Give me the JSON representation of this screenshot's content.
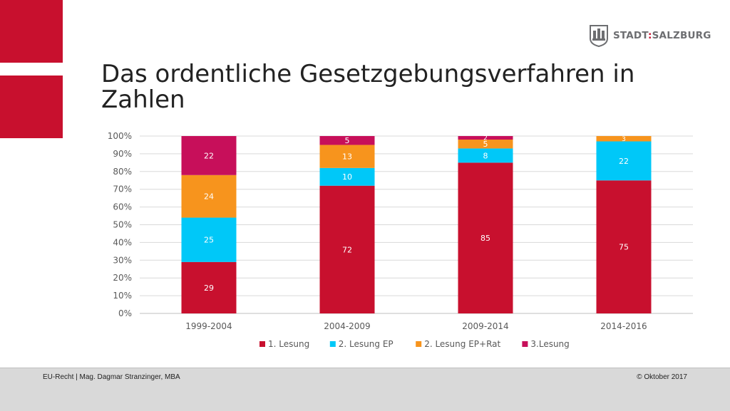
{
  "slide": {
    "title": "Das ordentliche Gesetzgebungsverfahren in Zahlen",
    "logo_text_left": "STADT",
    "logo_separator": ":",
    "logo_text_right": "SALZBURG",
    "footer_left": "EU-Recht | Mag. Dagmar Stranzinger, MBA",
    "footer_right": "© Oktober 2017",
    "accent_color": "#c8102e",
    "logo_icon": "castle-crest-icon"
  },
  "chart_data": {
    "type": "bar",
    "stacked": "percent",
    "categories": [
      "1999-2004",
      "2004-2009",
      "2009-2014",
      "2014-2016"
    ],
    "series": [
      {
        "name": "1. Lesung",
        "color": "#c8102e",
        "values": [
          29,
          72,
          85,
          75
        ]
      },
      {
        "name": "2. Lesung EP",
        "color": "#00c8f8",
        "values": [
          25,
          10,
          8,
          22
        ]
      },
      {
        "name": "2. Lesung EP+Rat",
        "color": "#f7941d",
        "values": [
          24,
          13,
          5,
          3
        ]
      },
      {
        "name": "3.Lesung",
        "color": "#c70f5a",
        "values": [
          22,
          5,
          2,
          0
        ]
      }
    ],
    "y_ticks": [
      "0%",
      "10%",
      "20%",
      "30%",
      "40%",
      "50%",
      "60%",
      "70%",
      "80%",
      "90%",
      "100%"
    ],
    "ylim": [
      0,
      100
    ],
    "grid": true,
    "legend": "bottom",
    "title": "",
    "xlabel": "",
    "ylabel": ""
  }
}
